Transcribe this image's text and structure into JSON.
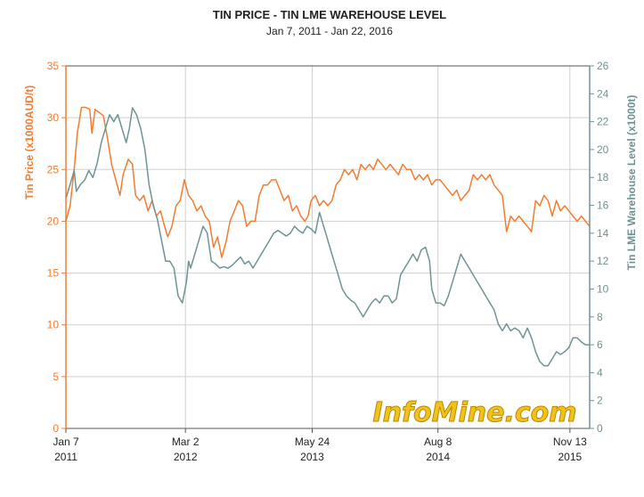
{
  "chart_data": {
    "type": "line",
    "title": "TIN PRICE - TIN LME WAREHOUSE LEVEL",
    "subtitle": "Jan 7, 2011 - Jan 22, 2016",
    "ylabel_left": "Tin Price (x1000AUD/t)",
    "ylabel_right": "Tin LME Warehouse Level (x1000t)",
    "ylim_left": [
      0,
      35
    ],
    "ylim_right": [
      0,
      26
    ],
    "yticks_left": [
      0,
      5,
      10,
      15,
      20,
      25,
      30,
      35
    ],
    "yticks_right": [
      0,
      2,
      4,
      6,
      8,
      10,
      12,
      14,
      16,
      18,
      20,
      22,
      24,
      26
    ],
    "xlim": [
      2011.02,
      2016.06
    ],
    "xticks": [
      {
        "x": 2011.02,
        "line1": "Jan 7",
        "line2": "2011"
      },
      {
        "x": 2012.17,
        "line1": "Mar 2",
        "line2": "2012"
      },
      {
        "x": 2013.39,
        "line1": "May 24",
        "line2": "2013"
      },
      {
        "x": 2014.6,
        "line1": "Aug 8",
        "line2": "2014"
      },
      {
        "x": 2015.87,
        "line1": "Nov 13",
        "line2": "2015"
      }
    ],
    "grid": true,
    "series": [
      {
        "name": "Tin Price",
        "axis": "left",
        "color": "#f47c30",
        "points": [
          [
            2011.02,
            20.0
          ],
          [
            2011.06,
            21.5
          ],
          [
            2011.1,
            25.0
          ],
          [
            2011.13,
            28.5
          ],
          [
            2011.17,
            31.0
          ],
          [
            2011.21,
            31.0
          ],
          [
            2011.25,
            30.8
          ],
          [
            2011.27,
            28.5
          ],
          [
            2011.3,
            30.8
          ],
          [
            2011.34,
            30.5
          ],
          [
            2011.38,
            30.2
          ],
          [
            2011.42,
            28.0
          ],
          [
            2011.46,
            25.5
          ],
          [
            2011.5,
            24.0
          ],
          [
            2011.54,
            22.5
          ],
          [
            2011.57,
            24.5
          ],
          [
            2011.62,
            26.0
          ],
          [
            2011.66,
            25.5
          ],
          [
            2011.69,
            22.5
          ],
          [
            2011.73,
            22.0
          ],
          [
            2011.77,
            22.5
          ],
          [
            2011.81,
            21.0
          ],
          [
            2011.85,
            22.0
          ],
          [
            2011.89,
            20.5
          ],
          [
            2011.93,
            21.0
          ],
          [
            2011.97,
            19.5
          ],
          [
            2012.0,
            18.5
          ],
          [
            2012.04,
            19.5
          ],
          [
            2012.08,
            21.5
          ],
          [
            2012.12,
            22.0
          ],
          [
            2012.16,
            24.0
          ],
          [
            2012.2,
            22.5
          ],
          [
            2012.24,
            22.0
          ],
          [
            2012.28,
            21.0
          ],
          [
            2012.32,
            21.5
          ],
          [
            2012.36,
            20.5
          ],
          [
            2012.4,
            20.0
          ],
          [
            2012.44,
            17.5
          ],
          [
            2012.48,
            18.5
          ],
          [
            2012.52,
            16.5
          ],
          [
            2012.56,
            18.0
          ],
          [
            2012.6,
            20.0
          ],
          [
            2012.64,
            21.0
          ],
          [
            2012.68,
            22.0
          ],
          [
            2012.72,
            21.5
          ],
          [
            2012.76,
            19.5
          ],
          [
            2012.8,
            20.0
          ],
          [
            2012.84,
            20.0
          ],
          [
            2012.88,
            22.5
          ],
          [
            2012.92,
            23.5
          ],
          [
            2012.96,
            23.5
          ],
          [
            2013.0,
            24.0
          ],
          [
            2013.04,
            24.0
          ],
          [
            2013.08,
            23.0
          ],
          [
            2013.12,
            22.0
          ],
          [
            2013.16,
            22.5
          ],
          [
            2013.2,
            21.0
          ],
          [
            2013.24,
            21.5
          ],
          [
            2013.28,
            20.5
          ],
          [
            2013.32,
            20.0
          ],
          [
            2013.35,
            20.5
          ],
          [
            2013.38,
            22.0
          ],
          [
            2013.42,
            22.5
          ],
          [
            2013.46,
            21.5
          ],
          [
            2013.5,
            22.0
          ],
          [
            2013.54,
            21.5
          ],
          [
            2013.58,
            22.0
          ],
          [
            2013.62,
            23.5
          ],
          [
            2013.66,
            24.0
          ],
          [
            2013.7,
            25.0
          ],
          [
            2013.74,
            24.5
          ],
          [
            2013.78,
            25.0
          ],
          [
            2013.82,
            24.0
          ],
          [
            2013.86,
            25.5
          ],
          [
            2013.9,
            25.0
          ],
          [
            2013.94,
            25.5
          ],
          [
            2013.98,
            25.0
          ],
          [
            2014.02,
            26.0
          ],
          [
            2014.06,
            25.5
          ],
          [
            2014.1,
            25.0
          ],
          [
            2014.14,
            25.5
          ],
          [
            2014.18,
            25.0
          ],
          [
            2014.22,
            24.5
          ],
          [
            2014.26,
            25.5
          ],
          [
            2014.3,
            25.0
          ],
          [
            2014.34,
            25.0
          ],
          [
            2014.38,
            24.0
          ],
          [
            2014.42,
            24.5
          ],
          [
            2014.46,
            24.0
          ],
          [
            2014.5,
            24.5
          ],
          [
            2014.54,
            23.5
          ],
          [
            2014.58,
            24.0
          ],
          [
            2014.62,
            24.0
          ],
          [
            2014.66,
            23.5
          ],
          [
            2014.7,
            23.0
          ],
          [
            2014.74,
            22.5
          ],
          [
            2014.78,
            23.0
          ],
          [
            2014.82,
            22.0
          ],
          [
            2014.86,
            22.5
          ],
          [
            2014.9,
            23.0
          ],
          [
            2014.94,
            24.5
          ],
          [
            2014.98,
            24.0
          ],
          [
            2015.02,
            24.5
          ],
          [
            2015.06,
            24.0
          ],
          [
            2015.1,
            24.5
          ],
          [
            2015.14,
            23.5
          ],
          [
            2015.18,
            23.0
          ],
          [
            2015.22,
            22.5
          ],
          [
            2015.26,
            19.0
          ],
          [
            2015.3,
            20.5
          ],
          [
            2015.34,
            20.0
          ],
          [
            2015.38,
            20.5
          ],
          [
            2015.42,
            20.0
          ],
          [
            2015.46,
            19.5
          ],
          [
            2015.5,
            19.0
          ],
          [
            2015.54,
            22.0
          ],
          [
            2015.58,
            21.5
          ],
          [
            2015.62,
            22.5
          ],
          [
            2015.66,
            22.0
          ],
          [
            2015.7,
            20.5
          ],
          [
            2015.74,
            22.0
          ],
          [
            2015.78,
            21.0
          ],
          [
            2015.82,
            21.5
          ],
          [
            2015.86,
            21.0
          ],
          [
            2015.9,
            20.5
          ],
          [
            2015.94,
            20.0
          ],
          [
            2015.98,
            20.5
          ],
          [
            2016.02,
            20.0
          ],
          [
            2016.06,
            19.5
          ]
        ]
      },
      {
        "name": "Tin LME Warehouse Level",
        "axis": "right",
        "color": "#6e9393",
        "points": [
          [
            2011.02,
            16.5
          ],
          [
            2011.06,
            17.5
          ],
          [
            2011.1,
            18.5
          ],
          [
            2011.12,
            17.0
          ],
          [
            2011.16,
            17.5
          ],
          [
            2011.2,
            17.8
          ],
          [
            2011.24,
            18.5
          ],
          [
            2011.28,
            18.0
          ],
          [
            2011.32,
            19.0
          ],
          [
            2011.36,
            20.5
          ],
          [
            2011.4,
            21.5
          ],
          [
            2011.44,
            22.5
          ],
          [
            2011.48,
            22.0
          ],
          [
            2011.52,
            22.5
          ],
          [
            2011.56,
            21.5
          ],
          [
            2011.6,
            20.5
          ],
          [
            2011.63,
            21.5
          ],
          [
            2011.66,
            23.0
          ],
          [
            2011.7,
            22.5
          ],
          [
            2011.74,
            21.5
          ],
          [
            2011.78,
            20.0
          ],
          [
            2011.82,
            17.5
          ],
          [
            2011.86,
            16.0
          ],
          [
            2011.9,
            15.0
          ],
          [
            2011.94,
            13.5
          ],
          [
            2011.98,
            12.0
          ],
          [
            2012.02,
            12.0
          ],
          [
            2012.06,
            11.5
          ],
          [
            2012.1,
            9.5
          ],
          [
            2012.14,
            9.0
          ],
          [
            2012.18,
            10.5
          ],
          [
            2012.2,
            12.0
          ],
          [
            2012.22,
            11.5
          ],
          [
            2012.26,
            12.5
          ],
          [
            2012.3,
            13.5
          ],
          [
            2012.34,
            14.5
          ],
          [
            2012.38,
            14.0
          ],
          [
            2012.42,
            12.0
          ],
          [
            2012.46,
            11.8
          ],
          [
            2012.5,
            11.5
          ],
          [
            2012.54,
            11.6
          ],
          [
            2012.58,
            11.5
          ],
          [
            2012.62,
            11.7
          ],
          [
            2012.66,
            12.0
          ],
          [
            2012.7,
            12.3
          ],
          [
            2012.74,
            11.8
          ],
          [
            2012.78,
            12.0
          ],
          [
            2012.82,
            11.5
          ],
          [
            2012.86,
            12.0
          ],
          [
            2012.9,
            12.5
          ],
          [
            2012.94,
            13.0
          ],
          [
            2012.98,
            13.5
          ],
          [
            2013.02,
            14.0
          ],
          [
            2013.06,
            14.2
          ],
          [
            2013.1,
            14.0
          ],
          [
            2013.14,
            13.8
          ],
          [
            2013.18,
            14.0
          ],
          [
            2013.22,
            14.5
          ],
          [
            2013.26,
            14.2
          ],
          [
            2013.3,
            14.0
          ],
          [
            2013.34,
            14.5
          ],
          [
            2013.38,
            14.3
          ],
          [
            2013.42,
            14.0
          ],
          [
            2013.46,
            15.5
          ],
          [
            2013.48,
            15.0
          ],
          [
            2013.52,
            14.0
          ],
          [
            2013.56,
            13.0
          ],
          [
            2013.6,
            12.0
          ],
          [
            2013.64,
            11.0
          ],
          [
            2013.68,
            10.0
          ],
          [
            2013.72,
            9.5
          ],
          [
            2013.76,
            9.2
          ],
          [
            2013.8,
            9.0
          ],
          [
            2013.84,
            8.5
          ],
          [
            2013.88,
            8.0
          ],
          [
            2013.92,
            8.5
          ],
          [
            2013.96,
            9.0
          ],
          [
            2014.0,
            9.3
          ],
          [
            2014.04,
            9.0
          ],
          [
            2014.08,
            9.5
          ],
          [
            2014.12,
            9.5
          ],
          [
            2014.16,
            9.0
          ],
          [
            2014.2,
            9.3
          ],
          [
            2014.24,
            11.0
          ],
          [
            2014.28,
            11.5
          ],
          [
            2014.32,
            12.0
          ],
          [
            2014.36,
            12.5
          ],
          [
            2014.4,
            12.0
          ],
          [
            2014.44,
            12.8
          ],
          [
            2014.48,
            13.0
          ],
          [
            2014.52,
            12.0
          ],
          [
            2014.54,
            10.0
          ],
          [
            2014.58,
            9.0
          ],
          [
            2014.62,
            9.0
          ],
          [
            2014.66,
            8.8
          ],
          [
            2014.7,
            9.5
          ],
          [
            2014.74,
            10.5
          ],
          [
            2014.78,
            11.5
          ],
          [
            2014.82,
            12.5
          ],
          [
            2014.86,
            12.0
          ],
          [
            2014.9,
            11.5
          ],
          [
            2014.94,
            11.0
          ],
          [
            2014.98,
            10.5
          ],
          [
            2015.02,
            10.0
          ],
          [
            2015.06,
            9.5
          ],
          [
            2015.1,
            9.0
          ],
          [
            2015.14,
            8.5
          ],
          [
            2015.18,
            7.5
          ],
          [
            2015.22,
            7.0
          ],
          [
            2015.26,
            7.5
          ],
          [
            2015.3,
            7.0
          ],
          [
            2015.34,
            7.2
          ],
          [
            2015.38,
            7.0
          ],
          [
            2015.42,
            6.5
          ],
          [
            2015.46,
            7.2
          ],
          [
            2015.5,
            6.5
          ],
          [
            2015.54,
            5.5
          ],
          [
            2015.58,
            4.8
          ],
          [
            2015.62,
            4.5
          ],
          [
            2015.66,
            4.5
          ],
          [
            2015.7,
            5.0
          ],
          [
            2015.74,
            5.5
          ],
          [
            2015.78,
            5.3
          ],
          [
            2015.82,
            5.5
          ],
          [
            2015.86,
            5.8
          ],
          [
            2015.9,
            6.5
          ],
          [
            2015.94,
            6.5
          ],
          [
            2015.98,
            6.2
          ],
          [
            2016.02,
            6.0
          ],
          [
            2016.06,
            6.0
          ]
        ]
      }
    ]
  },
  "watermark": "InfoMine.com",
  "colors": {
    "left_axis": "#f47c30",
    "right_axis": "#6e9393",
    "grid": "#d0d0d0",
    "frame": "#555555"
  }
}
